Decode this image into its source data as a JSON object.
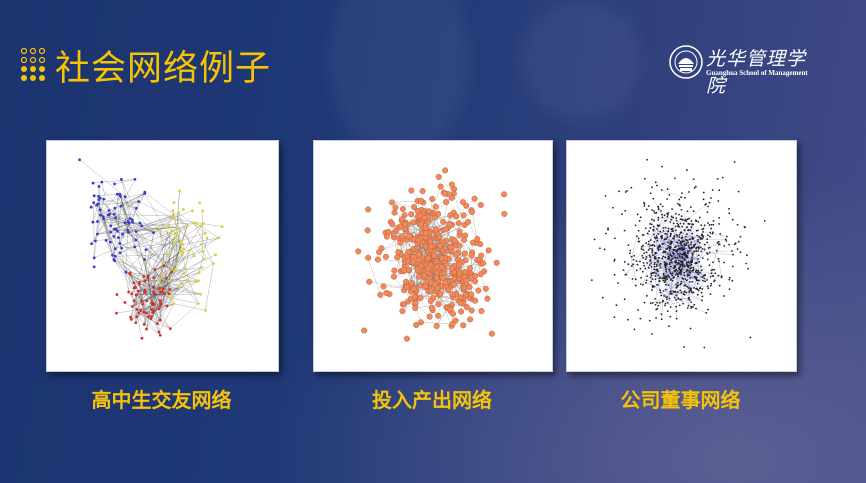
{
  "slide": {
    "title": "社会网络例子",
    "logo": {
      "name_cn": "光华管理学院",
      "name_en": "Guanghua School of Management"
    },
    "accent_color": "#f5c20a",
    "panels": [
      {
        "caption": "高中生交友网络",
        "node_colors": [
          "#3a3ad0",
          "#d8d040",
          "#d03030"
        ],
        "edge_color": "#555555"
      },
      {
        "caption": "投入产出网络",
        "node_colors": [
          "#f08a5a"
        ],
        "edge_color": "#666666"
      },
      {
        "caption": "公司董事网络",
        "node_colors": [
          "#222222"
        ],
        "edge_color": "#7070c8"
      }
    ]
  }
}
